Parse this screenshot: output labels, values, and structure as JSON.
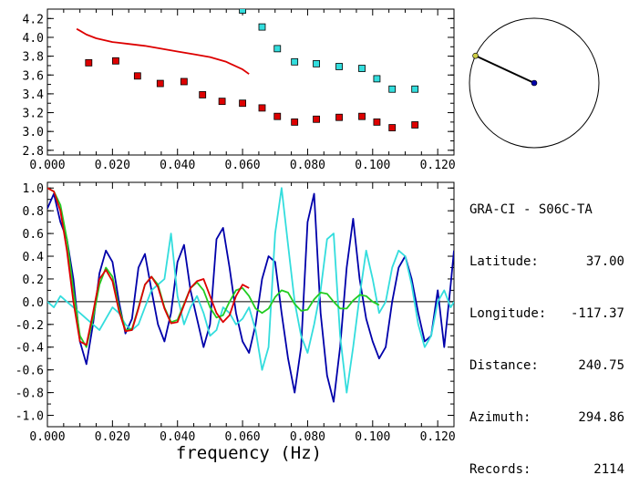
{
  "colors": {
    "red": "#dd0000",
    "cyan": "#33dddd",
    "navy": "#0000aa",
    "green": "#22cc22",
    "axis": "#000000"
  },
  "station": {
    "title": "GRA-CI - S06C-TA",
    "fields": [
      {
        "label": "Latitude:",
        "value": "37.00"
      },
      {
        "label": "Longitude:",
        "value": "-117.37"
      },
      {
        "label": "Distance:",
        "value": "240.75"
      },
      {
        "label": "Azimuth:",
        "value": "294.86"
      },
      {
        "label": "Records:",
        "value": "2114"
      }
    ]
  },
  "azimuth_dial": {
    "azimuth_deg": 294.86
  },
  "chart_data": [
    {
      "type": "scatter",
      "panel": "top",
      "xlim": [
        0,
        0.125
      ],
      "ylim": [
        2.75,
        4.3
      ],
      "x_ticks": [
        "0.000",
        "0.020",
        "0.040",
        "0.060",
        "0.080",
        "0.100",
        "0.120"
      ],
      "y_ticks": [
        "2.8",
        "3.0",
        "3.2",
        "3.4",
        "3.6",
        "3.8",
        "4.0",
        "4.2"
      ],
      "grid": false,
      "series": [
        {
          "kind": "points",
          "color": "red",
          "x": [
            0.0127,
            0.021,
            0.0277,
            0.0347,
            0.042,
            0.0477,
            0.0537,
            0.06,
            0.066,
            0.0707,
            0.076,
            0.0827,
            0.0897,
            0.0967,
            0.1013,
            0.106,
            0.113
          ],
          "y": [
            3.73,
            3.75,
            3.59,
            3.51,
            3.53,
            3.39,
            3.32,
            3.3,
            3.25,
            3.16,
            3.1,
            3.13,
            3.15,
            3.16,
            3.1,
            3.04,
            3.07
          ]
        },
        {
          "kind": "points",
          "color": "cyan",
          "x": [
            0.06,
            0.066,
            0.0707,
            0.076,
            0.0827,
            0.0897,
            0.0967,
            0.1013,
            0.106,
            0.113
          ],
          "y": [
            4.29,
            4.11,
            3.88,
            3.74,
            3.72,
            3.69,
            3.67,
            3.56,
            3.45,
            3.45
          ]
        },
        {
          "kind": "line",
          "color": "red",
          "x": [
            0.009,
            0.01,
            0.012,
            0.015,
            0.02,
            0.025,
            0.03,
            0.035,
            0.04,
            0.045,
            0.05,
            0.055,
            0.06,
            0.062
          ],
          "y": [
            4.09,
            4.07,
            4.03,
            3.99,
            3.95,
            3.93,
            3.91,
            3.88,
            3.85,
            3.82,
            3.79,
            3.74,
            3.66,
            3.61
          ]
        }
      ]
    },
    {
      "type": "line",
      "panel": "bottom",
      "xlabel": "frequency (Hz)",
      "xlim": [
        0,
        0.125
      ],
      "ylim": [
        -1.1,
        1.05
      ],
      "x_ticks": [
        "0.000",
        "0.020",
        "0.040",
        "0.060",
        "0.080",
        "0.100",
        "0.120"
      ],
      "y_ticks": [
        "1.0",
        "0.8",
        "0.6",
        "0.4",
        "0.2",
        "0.0",
        "-0.2",
        "-0.4",
        "-0.6",
        "-0.8",
        "-1.0"
      ],
      "zero_line": true,
      "series": [
        {
          "color": "navy",
          "x": [
            0.0,
            0.002,
            0.004,
            0.006,
            0.008,
            0.01,
            0.012,
            0.014,
            0.016,
            0.018,
            0.02,
            0.022,
            0.024,
            0.026,
            0.028,
            0.03,
            0.032,
            0.034,
            0.036,
            0.038,
            0.04,
            0.042,
            0.044,
            0.046,
            0.048,
            0.05,
            0.052,
            0.054,
            0.056,
            0.058,
            0.06,
            0.062,
            0.064,
            0.066,
            0.068,
            0.07,
            0.072,
            0.074,
            0.076,
            0.078,
            0.08,
            0.082,
            0.084,
            0.086,
            0.088,
            0.09,
            0.092,
            0.094,
            0.096,
            0.098,
            0.1,
            0.102,
            0.104,
            0.106,
            0.108,
            0.11,
            0.112,
            0.114,
            0.116,
            0.118,
            0.12,
            0.122,
            0.124,
            0.125
          ],
          "y": [
            0.82,
            0.95,
            0.7,
            0.55,
            0.2,
            -0.35,
            -0.55,
            -0.2,
            0.25,
            0.45,
            0.35,
            0.0,
            -0.28,
            -0.15,
            0.3,
            0.42,
            0.1,
            -0.2,
            -0.35,
            -0.1,
            0.35,
            0.5,
            0.1,
            -0.15,
            -0.4,
            -0.2,
            0.55,
            0.65,
            0.3,
            -0.1,
            -0.35,
            -0.45,
            -0.2,
            0.2,
            0.4,
            0.35,
            -0.1,
            -0.5,
            -0.8,
            -0.4,
            0.7,
            0.95,
            -0.1,
            -0.65,
            -0.88,
            -0.4,
            0.3,
            0.73,
            0.2,
            -0.15,
            -0.35,
            -0.5,
            -0.4,
            0.0,
            0.3,
            0.4,
            0.2,
            -0.1,
            -0.35,
            -0.3,
            0.1,
            -0.4,
            0.15,
            0.45
          ]
        },
        {
          "color": "cyan",
          "x": [
            0.0,
            0.002,
            0.004,
            0.006,
            0.008,
            0.01,
            0.012,
            0.014,
            0.016,
            0.018,
            0.02,
            0.022,
            0.024,
            0.026,
            0.028,
            0.03,
            0.032,
            0.034,
            0.036,
            0.038,
            0.04,
            0.042,
            0.044,
            0.046,
            0.048,
            0.05,
            0.052,
            0.054,
            0.056,
            0.058,
            0.06,
            0.062,
            0.064,
            0.066,
            0.068,
            0.07,
            0.072,
            0.074,
            0.076,
            0.078,
            0.08,
            0.082,
            0.084,
            0.086,
            0.088,
            0.09,
            0.092,
            0.094,
            0.096,
            0.098,
            0.1,
            0.102,
            0.104,
            0.106,
            0.108,
            0.11,
            0.112,
            0.114,
            0.116,
            0.118,
            0.12,
            0.122,
            0.124,
            0.125
          ],
          "y": [
            0.0,
            -0.05,
            0.05,
            0.0,
            -0.05,
            -0.1,
            -0.15,
            -0.2,
            -0.25,
            -0.15,
            -0.05,
            -0.1,
            -0.2,
            -0.25,
            -0.2,
            -0.05,
            0.1,
            0.15,
            0.2,
            0.6,
            0.05,
            -0.2,
            -0.05,
            0.05,
            -0.1,
            -0.3,
            -0.25,
            -0.05,
            -0.1,
            -0.2,
            -0.15,
            -0.05,
            -0.25,
            -0.6,
            -0.4,
            0.6,
            1.0,
            0.5,
            0.0,
            -0.3,
            -0.45,
            -0.2,
            0.1,
            0.55,
            0.6,
            -0.3,
            -0.8,
            -0.4,
            0.05,
            0.45,
            0.2,
            -0.1,
            0.0,
            0.3,
            0.45,
            0.4,
            0.15,
            -0.2,
            -0.4,
            -0.3,
            0.0,
            0.1,
            -0.05,
            0.0
          ]
        },
        {
          "color": "green",
          "x": [
            0.0,
            0.002,
            0.004,
            0.006,
            0.008,
            0.01,
            0.012,
            0.014,
            0.016,
            0.018,
            0.02,
            0.022,
            0.024,
            0.026,
            0.028,
            0.03,
            0.032,
            0.034,
            0.036,
            0.038,
            0.04,
            0.042,
            0.044,
            0.046,
            0.048,
            0.05,
            0.052,
            0.054,
            0.056,
            0.058,
            0.06,
            0.062,
            0.064,
            0.066,
            0.068,
            0.07,
            0.072,
            0.074,
            0.076,
            0.078,
            0.08,
            0.082,
            0.084,
            0.086,
            0.088,
            0.09,
            0.092,
            0.094,
            0.096,
            0.098,
            0.1,
            0.102
          ],
          "y": [
            1.0,
            0.97,
            0.85,
            0.55,
            0.1,
            -0.3,
            -0.4,
            -0.15,
            0.15,
            0.3,
            0.22,
            -0.05,
            -0.25,
            -0.24,
            -0.05,
            0.15,
            0.22,
            0.15,
            -0.05,
            -0.18,
            -0.16,
            -0.02,
            0.12,
            0.17,
            0.1,
            -0.05,
            -0.14,
            -0.12,
            0.0,
            0.1,
            0.12,
            0.05,
            -0.06,
            -0.1,
            -0.06,
            0.04,
            0.1,
            0.08,
            -0.02,
            -0.08,
            -0.07,
            0.02,
            0.08,
            0.07,
            0.0,
            -0.06,
            -0.06,
            0.01,
            0.06,
            0.05,
            0.0,
            -0.03
          ]
        },
        {
          "color": "red",
          "x": [
            0.0,
            0.002,
            0.004,
            0.006,
            0.008,
            0.01,
            0.012,
            0.014,
            0.016,
            0.018,
            0.02,
            0.022,
            0.024,
            0.026,
            0.028,
            0.03,
            0.032,
            0.034,
            0.036,
            0.038,
            0.04,
            0.042,
            0.044,
            0.046,
            0.048,
            0.05,
            0.052,
            0.054,
            0.056,
            0.058,
            0.06,
            0.062
          ],
          "y": [
            1.0,
            0.97,
            0.8,
            0.45,
            0.0,
            -0.35,
            -0.38,
            -0.1,
            0.2,
            0.28,
            0.18,
            -0.08,
            -0.26,
            -0.25,
            -0.06,
            0.15,
            0.22,
            0.13,
            -0.06,
            -0.19,
            -0.18,
            -0.03,
            0.12,
            0.18,
            0.2,
            0.05,
            -0.1,
            -0.18,
            -0.12,
            0.05,
            0.15,
            0.12
          ]
        }
      ]
    }
  ]
}
